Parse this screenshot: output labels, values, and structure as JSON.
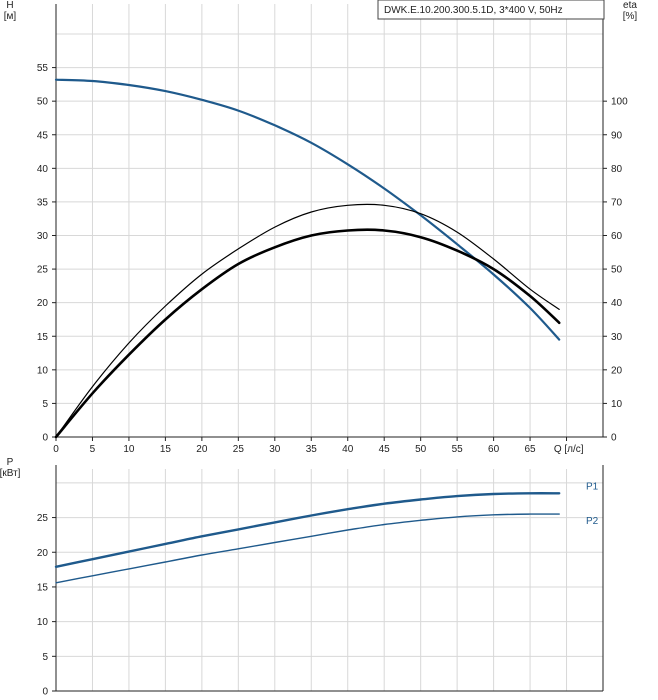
{
  "chart_data": [
    {
      "type": "line",
      "title": "DWK.E.10.200.300.5.1D, 3*400 V, 50Hz",
      "xlabel": "Q [л/с]",
      "ylabel": "H\n[м]",
      "ylabel_right": "eta\n[%]",
      "xlim": [
        0,
        75
      ],
      "ylim": [
        0,
        60
      ],
      "ylim_right": [
        0,
        120
      ],
      "x_ticks": [
        0,
        5,
        10,
        15,
        20,
        25,
        30,
        35,
        40,
        45,
        50,
        55,
        60,
        65
      ],
      "y_ticks": [
        0,
        5,
        10,
        15,
        20,
        25,
        30,
        35,
        40,
        45,
        50,
        55
      ],
      "y_ticks_right": [
        0,
        10,
        20,
        30,
        40,
        50,
        60,
        70,
        80,
        90,
        100
      ],
      "grid": true,
      "series": [
        {
          "axis": "left",
          "color": "#1f5a8c",
          "x": [
            0,
            5,
            10,
            15,
            20,
            25,
            30,
            35,
            40,
            45,
            50,
            55,
            60,
            65,
            69
          ],
          "values": [
            53.2,
            53.0,
            52.4,
            51.5,
            50.2,
            48.6,
            46.4,
            43.8,
            40.6,
            37.0,
            33.0,
            28.7,
            24.2,
            19.2,
            14.5
          ]
        },
        {
          "axis": "right",
          "color": "#000000",
          "x": [
            0,
            5,
            10,
            15,
            20,
            25,
            30,
            35,
            40,
            45,
            50,
            55,
            60,
            65,
            69
          ],
          "values": [
            0,
            15,
            28,
            39,
            48.5,
            56,
            62.5,
            67,
            69,
            69,
            66.5,
            61,
            53,
            44,
            38
          ]
        },
        {
          "axis": "right",
          "color": "#000000",
          "x": [
            0,
            5,
            10,
            15,
            20,
            25,
            30,
            35,
            40,
            45,
            50,
            55,
            60,
            65,
            69
          ],
          "values": [
            0,
            13,
            24.5,
            35,
            44,
            51.5,
            56.5,
            60,
            61.5,
            61.5,
            59.5,
            55.5,
            50,
            42,
            34
          ]
        }
      ]
    },
    {
      "type": "line",
      "xlabel": "",
      "ylabel": "P\n[кВт]",
      "xlim": [
        0,
        75
      ],
      "ylim": [
        0,
        32
      ],
      "y_ticks": [
        0,
        5,
        10,
        15,
        20,
        25
      ],
      "grid": true,
      "series": [
        {
          "name": "P1",
          "color": "#1f5a8c",
          "x": [
            0,
            5,
            10,
            15,
            20,
            25,
            30,
            35,
            40,
            45,
            50,
            55,
            60,
            65,
            69
          ],
          "values": [
            17.9,
            19.0,
            20.1,
            21.2,
            22.3,
            23.3,
            24.3,
            25.3,
            26.2,
            27.0,
            27.6,
            28.1,
            28.4,
            28.5,
            28.5
          ]
        },
        {
          "name": "P2",
          "color": "#1f5a8c",
          "x": [
            0,
            5,
            10,
            15,
            20,
            25,
            30,
            35,
            40,
            45,
            50,
            55,
            60,
            65,
            69
          ],
          "values": [
            15.6,
            16.6,
            17.6,
            18.6,
            19.6,
            20.5,
            21.4,
            22.3,
            23.2,
            24.0,
            24.6,
            25.1,
            25.4,
            25.5,
            25.5
          ]
        }
      ]
    }
  ]
}
